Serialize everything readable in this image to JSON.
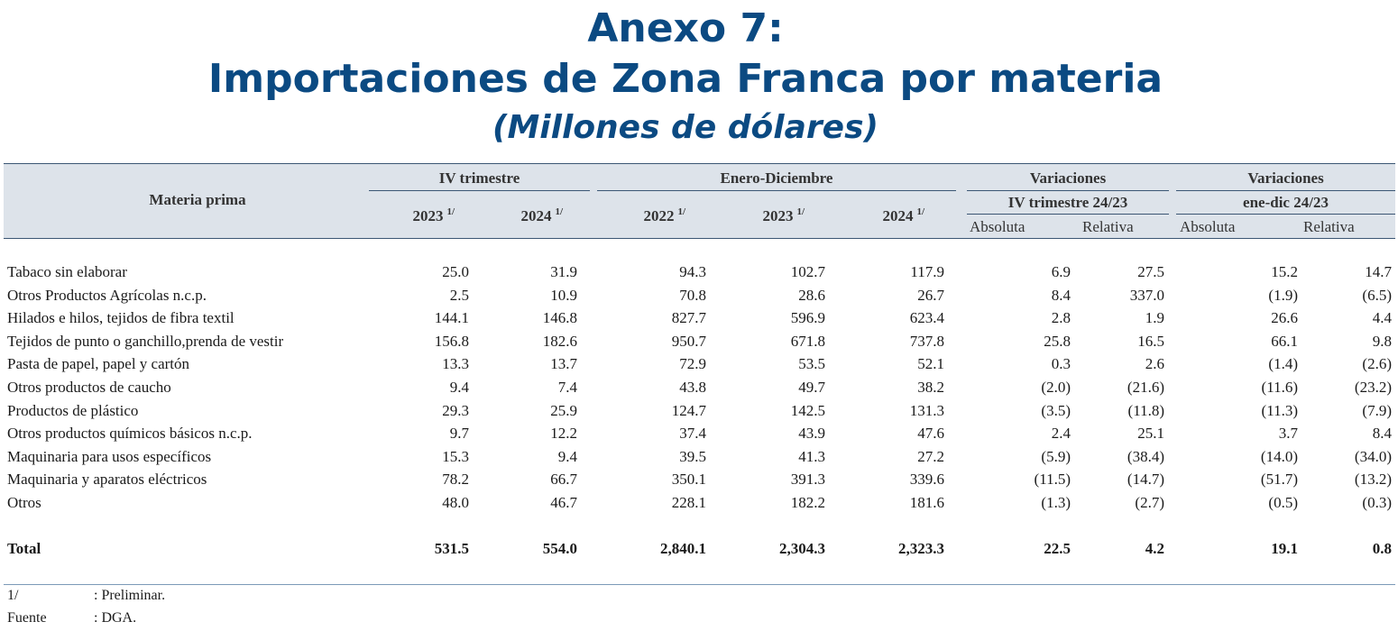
{
  "title": {
    "line1": "Anexo 7:",
    "line2": "Importaciones de Zona Franca por materia",
    "line3": "(Millones de dólares)"
  },
  "header": {
    "materia": "Materia prima",
    "group_iv": "IV trimestre",
    "group_ed": "Enero-Diciembre",
    "group_var1": "Variaciones",
    "group_var1_sub": "IV trimestre 24/23",
    "group_var2": "Variaciones",
    "group_var2_sub": "ene-dic 24/23",
    "year_iv_2023": "2023",
    "year_iv_2024": "2024",
    "year_ed_2022": "2022",
    "year_ed_2023": "2023",
    "year_ed_2024": "2024",
    "note_mark": "1/",
    "absoluta": "Absoluta",
    "relativa": "Relativa"
  },
  "rows": [
    {
      "label": "Tabaco sin elaborar",
      "v": [
        "25.0",
        "31.9",
        "94.3",
        "102.7",
        "117.9",
        "6.9",
        "27.5",
        "15.2",
        "14.7"
      ]
    },
    {
      "label": "Otros Productos Agrícolas n.c.p.",
      "v": [
        "2.5",
        "10.9",
        "70.8",
        "28.6",
        "26.7",
        "8.4",
        "337.0",
        "(1.9)",
        "(6.5)"
      ]
    },
    {
      "label": "Hilados e hilos, tejidos de fibra textil",
      "v": [
        "144.1",
        "146.8",
        "827.7",
        "596.9",
        "623.4",
        "2.8",
        "1.9",
        "26.6",
        "4.4"
      ]
    },
    {
      "label": "Tejidos de punto o ganchillo,prenda de vestir",
      "v": [
        "156.8",
        "182.6",
        "950.7",
        "671.8",
        "737.8",
        "25.8",
        "16.5",
        "66.1",
        "9.8"
      ]
    },
    {
      "label": "Pasta de papel, papel y cartón",
      "v": [
        "13.3",
        "13.7",
        "72.9",
        "53.5",
        "52.1",
        "0.3",
        "2.6",
        "(1.4)",
        "(2.6)"
      ]
    },
    {
      "label": "Otros productos de caucho",
      "v": [
        "9.4",
        "7.4",
        "43.8",
        "49.7",
        "38.2",
        "(2.0)",
        "(21.6)",
        "(11.6)",
        "(23.2)"
      ]
    },
    {
      "label": "Productos de plástico",
      "v": [
        "29.3",
        "25.9",
        "124.7",
        "142.5",
        "131.3",
        "(3.5)",
        "(11.8)",
        "(11.3)",
        "(7.9)"
      ]
    },
    {
      "label": "Otros productos químicos básicos n.c.p.",
      "v": [
        "9.7",
        "12.2",
        "37.4",
        "43.9",
        "47.6",
        "2.4",
        "25.1",
        "3.7",
        "8.4"
      ]
    },
    {
      "label": "Maquinaria para usos específicos",
      "v": [
        "15.3",
        "9.4",
        "39.5",
        "41.3",
        "27.2",
        "(5.9)",
        "(38.4)",
        "(14.0)",
        "(34.0)"
      ]
    },
    {
      "label": "Maquinaria y aparatos eléctricos",
      "v": [
        "78.2",
        "66.7",
        "350.1",
        "391.3",
        "339.6",
        "(11.5)",
        "(14.7)",
        "(51.7)",
        "(13.2)"
      ]
    },
    {
      "label": "Otros",
      "v": [
        "48.0",
        "46.7",
        "228.1",
        "182.2",
        "181.6",
        "(1.3)",
        "(2.7)",
        "(0.5)",
        "(0.3)"
      ]
    }
  ],
  "total": {
    "label": "Total",
    "v": [
      "531.5",
      "554.0",
      "2,840.1",
      "2,304.3",
      "2,323.3",
      "22.5",
      "4.2",
      "19.1",
      "0.8"
    ]
  },
  "footnotes": [
    {
      "key": "1/",
      "text": ": Preliminar."
    },
    {
      "key": "Fuente",
      "text": ": DGA."
    }
  ],
  "colors": {
    "title": "#0b4a82",
    "header_bg": "#dde3ea",
    "rule": "#3b5674"
  }
}
